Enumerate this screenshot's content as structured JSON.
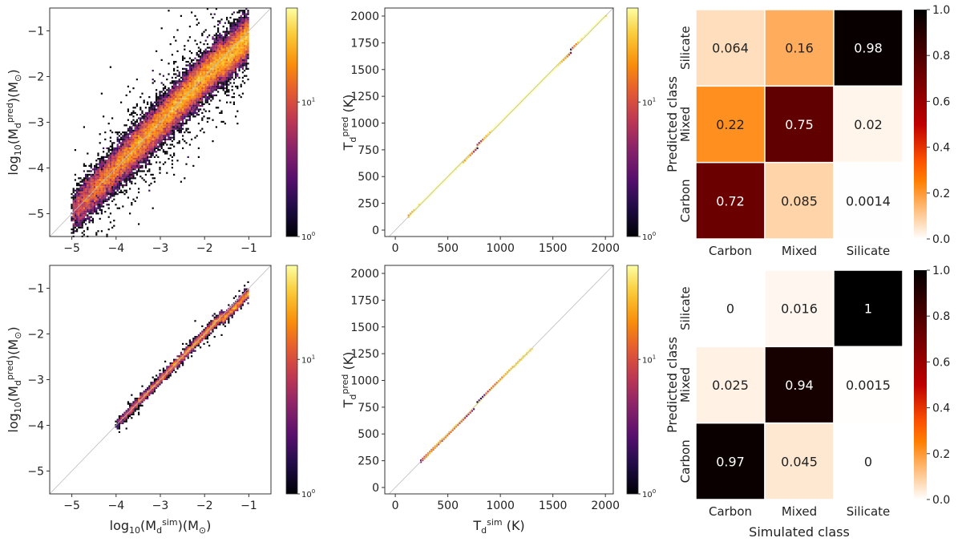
{
  "chart_data": [
    {
      "id": "mass_train",
      "type": "heatmap",
      "subtype": "2d-histogram",
      "xlim": [
        -5.5,
        -0.5
      ],
      "ylim": [
        -5.5,
        -0.5
      ],
      "xticks": [
        "−5",
        "−4",
        "−3",
        "−2",
        "−1"
      ],
      "xtick_values": [
        -5,
        -4,
        -3,
        -2,
        -1
      ],
      "yticks": [
        "−1",
        "−2",
        "−3",
        "−4",
        "−5"
      ],
      "ytick_values": [
        -1,
        -2,
        -3,
        -4,
        -5
      ],
      "xlabel": [],
      "ylabel": [
        {
          "t": "log"
        },
        {
          "t": "10",
          "s": "sub"
        },
        {
          "t": "(M"
        },
        {
          "t": "d",
          "s": "sub"
        },
        {
          "t": "pred",
          "s": "sup"
        },
        {
          "t": ")(M"
        },
        {
          "t": "⊙",
          "s": "sub"
        },
        {
          "t": ")"
        }
      ],
      "colorbar": {
        "scale": "log",
        "range": [
          1,
          50
        ],
        "ticks": [
          {
            "base": "10",
            "exp": "0",
            "value": 1
          },
          {
            "base": "10",
            "exp": "1",
            "value": 10
          }
        ]
      },
      "reference_line": "y = x",
      "distribution": {
        "x_range": [
          -5.0,
          -1.0
        ],
        "scatter_sd": 0.22,
        "n": 30000
      }
    },
    {
      "id": "temp_train",
      "type": "heatmap",
      "subtype": "2d-histogram",
      "xlim": [
        -100,
        2075
      ],
      "ylim": [
        -60,
        2075
      ],
      "xticks": [
        "0",
        "500",
        "1000",
        "1500",
        "2000"
      ],
      "xtick_values": [
        0,
        500,
        1000,
        1500,
        2000
      ],
      "yticks": [
        "2000",
        "1750",
        "1500",
        "1250",
        "1000",
        "750",
        "500",
        "250",
        "0"
      ],
      "ytick_values": [
        2000,
        1750,
        1500,
        1250,
        1000,
        750,
        500,
        250,
        0
      ],
      "xlabel": [],
      "ylabel": [
        {
          "t": "T"
        },
        {
          "t": "d",
          "s": "sub"
        },
        {
          "t": "pred",
          "s": "sup"
        },
        {
          "t": " (K)"
        }
      ],
      "colorbar": {
        "scale": "log",
        "range": [
          1,
          50
        ],
        "ticks": [
          {
            "base": "10",
            "exp": "0",
            "value": 1
          },
          {
            "base": "10",
            "exp": "1",
            "value": 10
          }
        ]
      },
      "reference_line": "y = x",
      "distribution": {
        "x_range": [
          120,
          2000
        ],
        "scatter_sd": 0.1,
        "n": 30000
      }
    },
    {
      "id": "class_train",
      "type": "heatmap",
      "subtype": "confusion-matrix",
      "columns": [
        "Carbon",
        "Mixed",
        "Silicate"
      ],
      "rows": [
        "Silicate",
        "Mixed",
        "Carbon"
      ],
      "values": [
        [
          "0.064",
          "0.16",
          "0.98"
        ],
        [
          "0.22",
          "0.75",
          "0.02"
        ],
        [
          "0.72",
          "0.085",
          "0.0014"
        ]
      ],
      "xlabel": "",
      "ylabel": "Predicted class",
      "colorbar": {
        "range": [
          0,
          1
        ],
        "ticks": [
          "1.0",
          "0.8",
          "0.6",
          "0.4",
          "0.2",
          "0.0"
        ]
      }
    },
    {
      "id": "mass_test",
      "type": "heatmap",
      "subtype": "2d-histogram",
      "xlim": [
        -5.5,
        -0.5
      ],
      "ylim": [
        -5.5,
        -0.5
      ],
      "xticks": [
        "−5",
        "−4",
        "−3",
        "−2",
        "−1"
      ],
      "xtick_values": [
        -5,
        -4,
        -3,
        -2,
        -1
      ],
      "yticks": [
        "−1",
        "−2",
        "−3",
        "−4",
        "−5"
      ],
      "ytick_values": [
        -1,
        -2,
        -3,
        -4,
        -5
      ],
      "xlabel": [
        {
          "t": "log"
        },
        {
          "t": "10",
          "s": "sub"
        },
        {
          "t": "(M"
        },
        {
          "t": "d",
          "s": "sub"
        },
        {
          "t": "sim",
          "s": "sup"
        },
        {
          "t": ")(M"
        },
        {
          "t": "⊙",
          "s": "sub"
        },
        {
          "t": ")"
        }
      ],
      "ylabel": [
        {
          "t": "log"
        },
        {
          "t": "10",
          "s": "sub"
        },
        {
          "t": "(M"
        },
        {
          "t": "d",
          "s": "sub"
        },
        {
          "t": "pred",
          "s": "sup"
        },
        {
          "t": ")(M"
        },
        {
          "t": "⊙",
          "s": "sub"
        },
        {
          "t": ")"
        }
      ],
      "colorbar": {
        "scale": "log",
        "range": [
          1,
          50
        ],
        "ticks": [
          {
            "base": "10",
            "exp": "0",
            "value": 1
          },
          {
            "base": "10",
            "exp": "1",
            "value": 10
          }
        ]
      },
      "reference_line": "y = x",
      "distribution": {
        "x_range": [
          -4.0,
          -1.0
        ],
        "scatter_sd": 0.05,
        "n": 4000
      }
    },
    {
      "id": "temp_test",
      "type": "heatmap",
      "subtype": "2d-histogram",
      "xlim": [
        -100,
        2075
      ],
      "ylim": [
        -60,
        2075
      ],
      "xticks": [
        "0",
        "500",
        "1000",
        "1500",
        "2000"
      ],
      "xtick_values": [
        0,
        500,
        1000,
        1500,
        2000
      ],
      "yticks": [
        "2000",
        "1750",
        "1500",
        "1250",
        "1000",
        "750",
        "500",
        "250",
        "0"
      ],
      "ytick_values": [
        2000,
        1750,
        1500,
        1250,
        1000,
        750,
        500,
        250,
        0
      ],
      "xlabel": [
        {
          "t": "T"
        },
        {
          "t": "d",
          "s": "sub"
        },
        {
          "t": "sim",
          "s": "sup"
        },
        {
          "t": " (K)"
        }
      ],
      "ylabel": [
        {
          "t": "T"
        },
        {
          "t": "d",
          "s": "sub"
        },
        {
          "t": "pred",
          "s": "sup"
        },
        {
          "t": " (K)"
        }
      ],
      "colorbar": {
        "scale": "log",
        "range": [
          1,
          50
        ],
        "ticks": [
          {
            "base": "10",
            "exp": "0",
            "value": 1
          },
          {
            "base": "10",
            "exp": "1",
            "value": 10
          }
        ]
      },
      "reference_line": "y = x",
      "distribution": {
        "x_range": [
          240,
          1300
        ],
        "scatter_sd": 0.06,
        "n": 4000
      }
    },
    {
      "id": "class_test",
      "type": "heatmap",
      "subtype": "confusion-matrix",
      "columns": [
        "Carbon",
        "Mixed",
        "Silicate"
      ],
      "rows": [
        "Silicate",
        "Mixed",
        "Carbon"
      ],
      "values": [
        [
          "0",
          "0.016",
          "1"
        ],
        [
          "0.025",
          "0.94",
          "0.0015"
        ],
        [
          "0.97",
          "0.045",
          "0"
        ]
      ],
      "xlabel": "Simulated class",
      "ylabel": "Predicted class",
      "colorbar": {
        "range": [
          0,
          1
        ],
        "ticks": [
          "1.0",
          "0.8",
          "0.6",
          "0.4",
          "0.2",
          "0.0"
        ]
      }
    }
  ]
}
